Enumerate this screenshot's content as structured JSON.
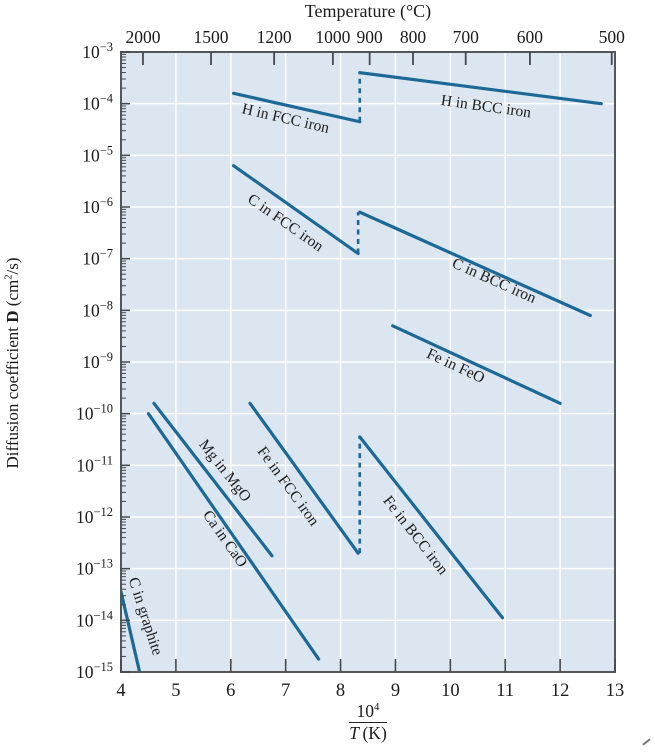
{
  "figure": {
    "title": "Temperature (°C)",
    "xlabel": {
      "numerator_base": "10",
      "numerator_exp": "4",
      "denominator_var": "T",
      "denominator_rest": " (K)"
    },
    "ylabel": {
      "prefix": "Diffusion coefficient ",
      "symbol": "D",
      "unit_open": " (cm",
      "unit_exp": "2",
      "unit_close": "/s)"
    }
  },
  "colors": {
    "line": "#1c6997",
    "plot_bg": "#dce6f0",
    "grid": "#ffffff",
    "spine": "#53575b",
    "tick": "#45494d",
    "text": "#1c1c1c"
  },
  "chart_data": {
    "type": "line",
    "title": "Temperature (°C)",
    "xlabel": "10^4 / T(K)",
    "ylabel": "Diffusion coefficient D (cm^2/s)",
    "x_axis": {
      "min": 4,
      "max": 13,
      "ticks": [
        "4",
        "5",
        "6",
        "7",
        "8",
        "9",
        "10",
        "11",
        "12",
        "13"
      ]
    },
    "y_axis": {
      "scale": "log10",
      "exp_max": -3,
      "exp_min": -15,
      "tick_exponents": [
        -3,
        -4,
        -5,
        -6,
        -7,
        -8,
        -9,
        -10,
        -11,
        -12,
        -13,
        -14,
        -15
      ]
    },
    "top_axis": {
      "label": "Temperature (°C)",
      "ticks": [
        {
          "label": "2000",
          "x": 4.4
        },
        {
          "label": "1500",
          "x": 5.64
        },
        {
          "label": "1200",
          "x": 6.79
        },
        {
          "label": "1000",
          "x": 7.86
        },
        {
          "label": "900",
          "x": 8.53
        },
        {
          "label": "800",
          "x": 9.32
        },
        {
          "label": "700",
          "x": 10.28
        },
        {
          "label": "600",
          "x": 11.45
        },
        {
          "label": "500",
          "x": 12.94
        }
      ]
    },
    "grid": {
      "vertical_x": [
        5,
        6,
        7,
        8,
        9,
        10,
        11,
        12
      ],
      "horizontal_exponents": [
        -4,
        -5,
        -6,
        -7,
        -8,
        -9,
        -10,
        -11,
        -12,
        -13,
        -14
      ]
    },
    "series": [
      {
        "name": "H in FCC iron",
        "points": [
          [
            6.05,
            -3.8
          ],
          [
            8.35,
            -4.35
          ]
        ],
        "label": {
          "text": "H in FCC iron",
          "x": 7.0,
          "logD": -4.28,
          "angle": 13
        }
      },
      {
        "name": "H in BCC iron",
        "points": [
          [
            8.35,
            -3.4
          ],
          [
            12.75,
            -4.0
          ]
        ],
        "label": {
          "text": "H in BCC iron",
          "x": 10.65,
          "logD": -4.05,
          "angle": 8
        }
      },
      {
        "name": "C in FCC iron",
        "points": [
          [
            6.05,
            -5.2
          ],
          [
            8.32,
            -6.9
          ]
        ],
        "label": {
          "text": "C in FCC iron",
          "x": 7.0,
          "logD": -6.3,
          "angle": 35
        }
      },
      {
        "name": "C in BCC iron",
        "points": [
          [
            8.35,
            -6.1
          ],
          [
            12.55,
            -8.1
          ]
        ],
        "label": {
          "text": "C in BCC iron",
          "x": 10.8,
          "logD": -7.42,
          "angle": 24
        }
      },
      {
        "name": "Fe in FeO",
        "points": [
          [
            8.95,
            -8.3
          ],
          [
            12.0,
            -9.8
          ]
        ],
        "label": {
          "text": "Fe in FeO",
          "x": 10.1,
          "logD": -9.07,
          "angle": 25
        }
      },
      {
        "name": "Fe in FCC iron",
        "points": [
          [
            6.35,
            -9.8
          ],
          [
            8.32,
            -12.7
          ]
        ],
        "label": {
          "text": "Fe in FCC iron",
          "x": 7.05,
          "logD": -11.4,
          "angle": 54
        }
      },
      {
        "name": "Fe in BCC iron",
        "points": [
          [
            8.35,
            -10.45
          ],
          [
            10.95,
            -13.95
          ]
        ],
        "label": {
          "text": "Fe in BCC iron",
          "x": 9.37,
          "logD": -12.35,
          "angle": 52
        }
      },
      {
        "name": "Mg in MgO",
        "points": [
          [
            4.6,
            -9.8
          ],
          [
            6.75,
            -12.75
          ]
        ],
        "label": {
          "text": "Mg in MgO",
          "x": 5.9,
          "logD": -11.1,
          "angle": 52
        }
      },
      {
        "name": "Ca in CaO",
        "points": [
          [
            4.5,
            -10.0
          ],
          [
            7.6,
            -14.75
          ]
        ],
        "label": {
          "text": "Ca in CaO",
          "x": 5.9,
          "logD": -12.42,
          "angle": 55
        }
      },
      {
        "name": "C in graphite",
        "points": [
          [
            4.0,
            -13.45
          ],
          [
            4.35,
            -15.05
          ]
        ],
        "label": {
          "text": "C in graphite",
          "x": 4.45,
          "logD": -13.92,
          "angle": 72
        }
      }
    ],
    "phase_transition_connectors": [
      {
        "x": 8.35,
        "from": -4.35,
        "to": -3.4
      },
      {
        "x": 8.32,
        "from": -6.9,
        "to": -6.1
      },
      {
        "x": 8.35,
        "from": -12.7,
        "to": -10.45
      }
    ]
  }
}
